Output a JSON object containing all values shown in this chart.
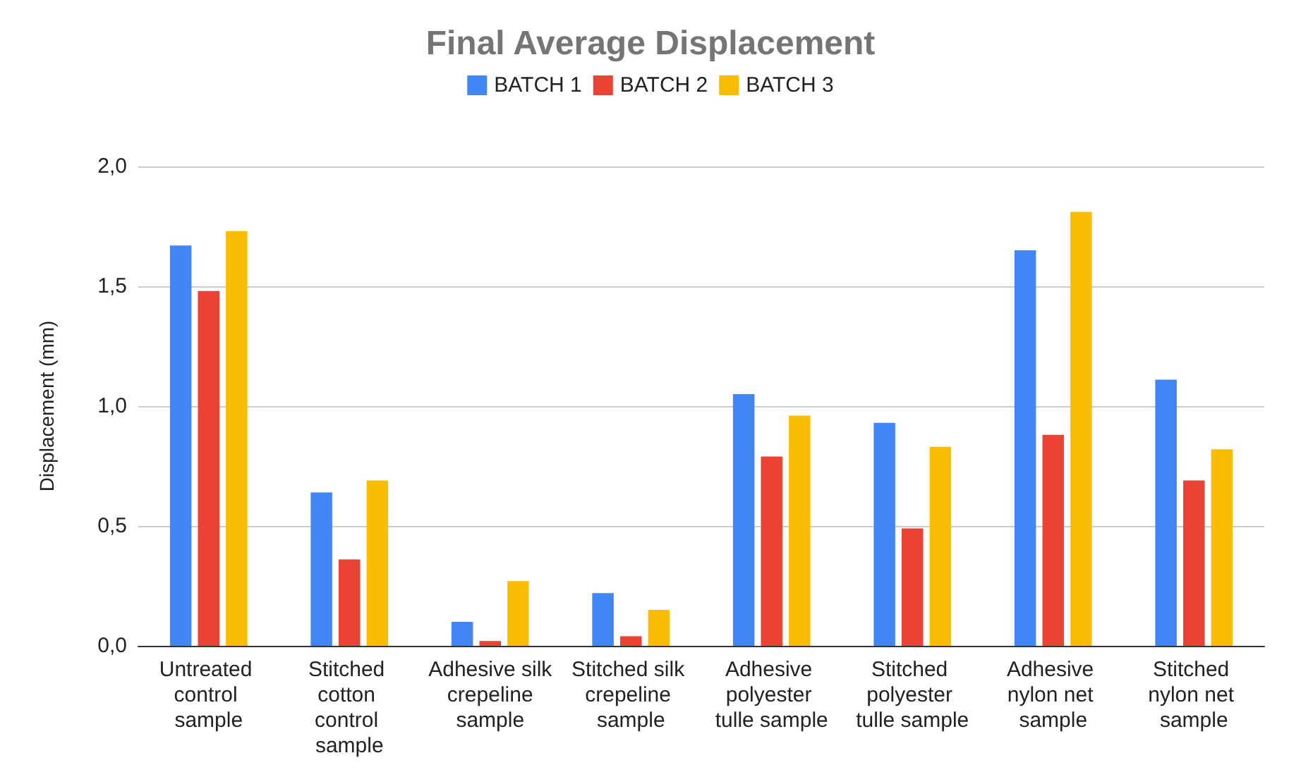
{
  "chart_data": {
    "type": "bar",
    "title": "Final Average Displacement",
    "ylabel": "Displacement (mm)",
    "categories": [
      "Untreated control sample",
      "Stitched cotton control sample",
      "Adhesive silk crepeline sample",
      "Stitched silk crepeline sample",
      "Adhesive polyester tulle sample",
      "Stitched polyester tulle sample",
      "Adhesive nylon net sample",
      "Stitched nylon net sample"
    ],
    "series": [
      {
        "name": "BATCH 1",
        "color": "#4285f4",
        "values": [
          1.67,
          0.64,
          0.1,
          0.22,
          1.05,
          0.93,
          1.65,
          1.11
        ]
      },
      {
        "name": "BATCH 2",
        "color": "#ea4335",
        "values": [
          1.48,
          0.36,
          0.02,
          0.04,
          0.79,
          0.49,
          0.88,
          0.69
        ]
      },
      {
        "name": "BATCH 3",
        "color": "#fbbc04",
        "values": [
          1.73,
          0.69,
          0.27,
          0.15,
          0.96,
          0.83,
          1.81,
          0.82
        ]
      }
    ],
    "ylim": [
      0,
      2
    ],
    "yticks": [
      {
        "value": 0,
        "label": "0,0"
      },
      {
        "value": 0.5,
        "label": "0,5"
      },
      {
        "value": 1,
        "label": "1,0"
      },
      {
        "value": 1.5,
        "label": "1,5"
      },
      {
        "value": 2,
        "label": "2,0"
      }
    ],
    "grid": "y",
    "legend": "top"
  }
}
